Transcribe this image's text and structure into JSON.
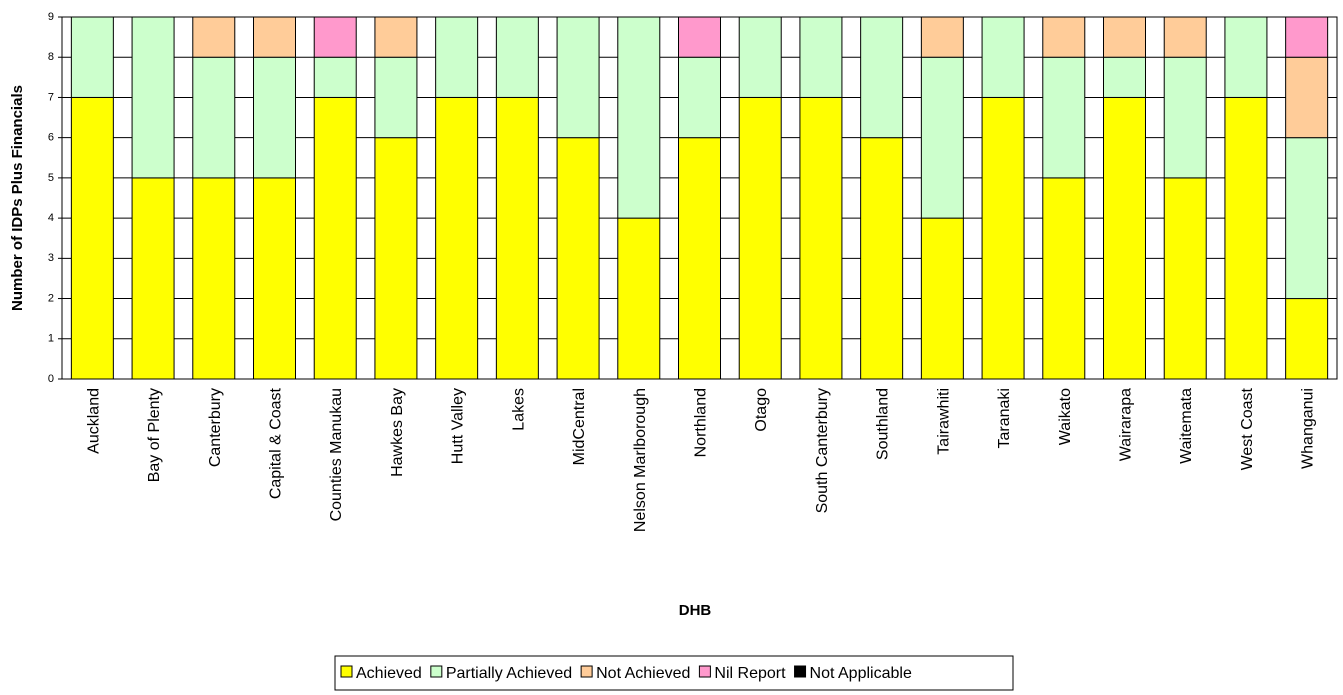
{
  "chart_data": {
    "type": "stacked_bar",
    "y_label": "Number of IDPs Plus Financials",
    "x_label": "DHB",
    "categories": [
      "Auckland",
      "Bay of Plenty",
      "Canterbury",
      "Capital & Coast",
      "Counties Manukau",
      "Hawkes Bay",
      "Hutt Valley",
      "Lakes",
      "MidCentral",
      "Nelson Marlborough",
      "Northland",
      "Otago",
      "South Canterbury",
      "Southland",
      "Tairawhiti",
      "Taranaki",
      "Waikato",
      "Wairarapa",
      "Waitemata",
      "West Coast",
      "Whanganui"
    ],
    "series": [
      {
        "name": "Achieved",
        "color": "#ffff00",
        "values": [
          7,
          5,
          5,
          5,
          7,
          6,
          7,
          7,
          6,
          4,
          6,
          7,
          7,
          6,
          4,
          7,
          5,
          7,
          5,
          7,
          2
        ]
      },
      {
        "name": "Partially Achieved",
        "color": "#ccffcc",
        "values": [
          2,
          4,
          3,
          3,
          1,
          2,
          2,
          2,
          3,
          5,
          2,
          2,
          2,
          3,
          4,
          2,
          3,
          1,
          3,
          2,
          4
        ]
      },
      {
        "name": "Not Achieved",
        "color": "#ffcc99",
        "values": [
          0,
          0,
          1,
          1,
          0,
          1,
          0,
          0,
          0,
          0,
          0,
          0,
          0,
          0,
          1,
          0,
          1,
          1,
          1,
          0,
          2
        ]
      },
      {
        "name": "Nil Report",
        "color": "#ff99cc",
        "values": [
          0,
          0,
          0,
          0,
          1,
          0,
          0,
          0,
          0,
          0,
          1,
          0,
          0,
          0,
          0,
          0,
          0,
          0,
          0,
          0,
          1
        ]
      },
      {
        "name": "Not Applicable",
        "color": "#000000",
        "values": [
          0,
          0,
          0,
          0,
          0,
          0,
          0,
          0,
          0,
          0,
          0,
          0,
          0,
          0,
          0,
          0,
          0,
          0,
          0,
          0,
          0
        ]
      }
    ],
    "ylim": [
      0,
      9
    ],
    "yticks": [
      0,
      1,
      2,
      3,
      4,
      5,
      6,
      7,
      8,
      9
    ],
    "grid": true,
    "legend": "bottom"
  }
}
